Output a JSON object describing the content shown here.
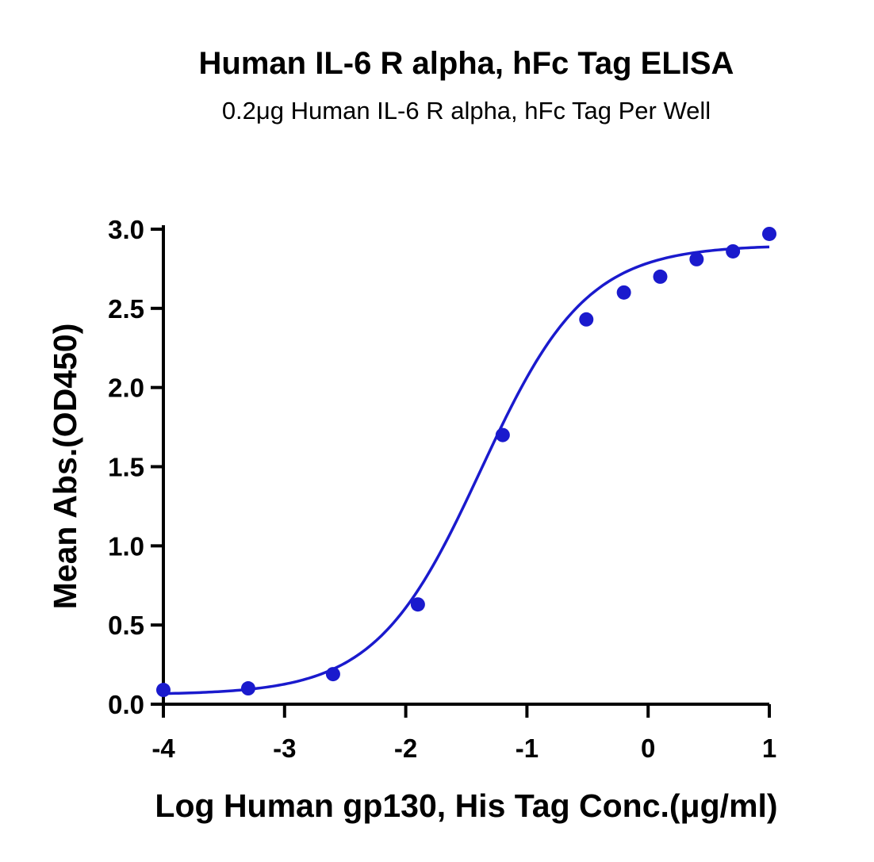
{
  "chart_data": {
    "type": "scatter",
    "title": "Human IL-6 R alpha, hFc Tag ELISA",
    "subtitle": "0.2μg Human IL-6 R alpha, hFc Tag Per Well",
    "xlabel": "Log Human gp130, His Tag Conc.(μg/ml)",
    "ylabel": "Mean Abs.(OD450)",
    "xlim": [
      -4,
      1
    ],
    "ylim": [
      0,
      3.0
    ],
    "x_ticks": [
      "-4",
      "-3",
      "-2",
      "-1",
      "0",
      "1"
    ],
    "y_ticks": [
      "0.0",
      "0.5",
      "1.0",
      "1.5",
      "2.0",
      "2.5",
      "3.0"
    ],
    "grid": false,
    "legend": "none",
    "color": "#1a1acd",
    "series": [
      {
        "x": [
          -4.0,
          -3.3,
          -2.6,
          -1.9,
          -1.2,
          -0.51,
          -0.2,
          0.1,
          0.4,
          0.7,
          1.0
        ],
        "y": [
          0.09,
          0.1,
          0.19,
          0.63,
          1.7,
          2.43,
          2.6,
          2.7,
          2.81,
          2.86,
          2.97
        ]
      }
    ],
    "fit_curve": {
      "model": "4PL",
      "bottom": 0.06,
      "top": 2.9,
      "log_ec50": -1.38,
      "hill_slope": 1.0
    }
  }
}
